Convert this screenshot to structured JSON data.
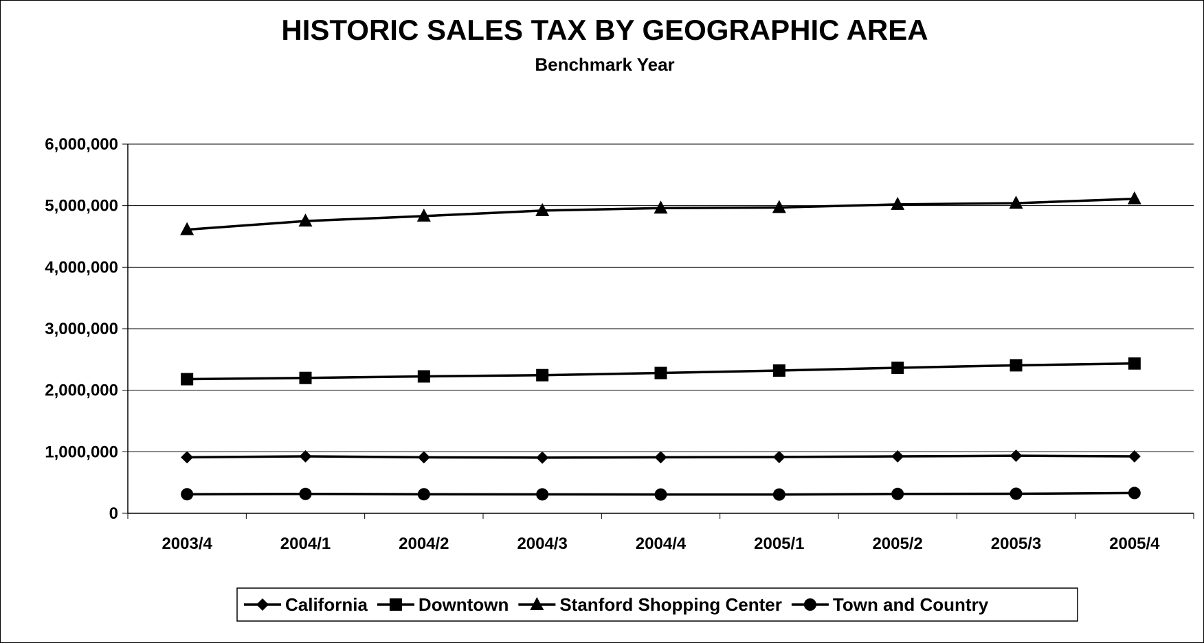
{
  "chart_data": {
    "type": "line",
    "title": "HISTORIC SALES TAX BY GEOGRAPHIC AREA",
    "subtitle": "Benchmark Year",
    "xlabel": "",
    "ylabel": "",
    "categories": [
      "2003/4",
      "2004/1",
      "2004/2",
      "2004/3",
      "2004/4",
      "2005/1",
      "2005/2",
      "2005/3",
      "2005/4"
    ],
    "ylim": [
      0,
      6000000
    ],
    "yticks": [
      0,
      1000000,
      2000000,
      3000000,
      4000000,
      5000000,
      6000000
    ],
    "ytick_labels": [
      "0",
      "1,000,000",
      "2,000,000",
      "3,000,000",
      "4,000,000",
      "5,000,000",
      "6,000,000"
    ],
    "grid": true,
    "legend_position": "bottom",
    "series": [
      {
        "name": "California",
        "marker": "diamond",
        "values": [
          910000,
          925000,
          910000,
          905000,
          910000,
          915000,
          925000,
          935000,
          925000
        ]
      },
      {
        "name": "Downtown",
        "marker": "square",
        "values": [
          2180000,
          2200000,
          2225000,
          2245000,
          2280000,
          2320000,
          2365000,
          2405000,
          2435000
        ]
      },
      {
        "name": "Stanford Shopping Center",
        "marker": "triangle",
        "values": [
          4610000,
          4750000,
          4830000,
          4920000,
          4960000,
          4970000,
          5020000,
          5040000,
          5110000
        ]
      },
      {
        "name": "Town and Country",
        "marker": "circle",
        "values": [
          310000,
          315000,
          310000,
          308000,
          305000,
          305000,
          315000,
          318000,
          330000
        ]
      }
    ],
    "colors": {
      "line": "#000000",
      "grid": "#000000",
      "background": "#ffffff"
    }
  }
}
